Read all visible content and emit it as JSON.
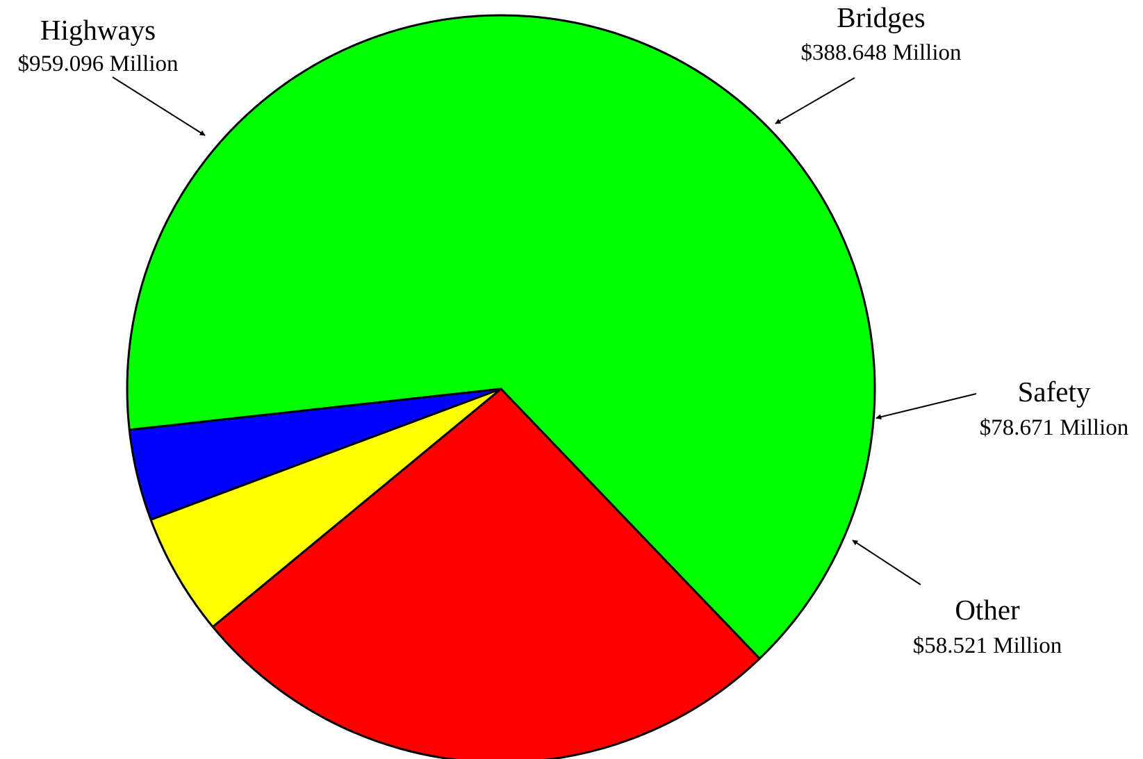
{
  "chart_data": {
    "type": "pie",
    "title": "",
    "slices": [
      {
        "label": "Highways",
        "value": 959.096,
        "value_label": "$959.096 Million",
        "color": "#00FF00"
      },
      {
        "label": "Bridges",
        "value": 388.648,
        "value_label": "$388.648 Million",
        "color": "#FF0000"
      },
      {
        "label": "Safety",
        "value": 78.671,
        "value_label": "$78.671 Million",
        "color": "#FFFF00"
      },
      {
        "label": "Other",
        "value": 58.521,
        "value_label": "$58.521 Million",
        "color": "#0000FF"
      }
    ],
    "legend": "none"
  }
}
